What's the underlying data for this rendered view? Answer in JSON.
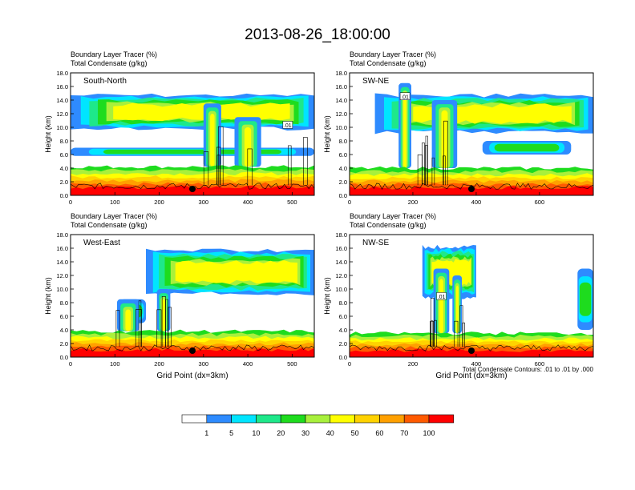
{
  "figure": {
    "title": "2013-08-26_18:00:00",
    "footnote": "Total Condensate Contours: .01 to .01 by .000"
  },
  "colorbar": {
    "colors": [
      "#ffffff",
      "#2e8bff",
      "#00e5ff",
      "#1ee88a",
      "#1edc1e",
      "#a8f03c",
      "#ffff00",
      "#ffd200",
      "#ffa000",
      "#ff5a00",
      "#ff0000"
    ],
    "labels": [
      "1",
      "5",
      "10",
      "20",
      "30",
      "40",
      "50",
      "60",
      "70",
      "100"
    ]
  },
  "chart_data": [
    {
      "type": "heatmap",
      "panel": "South-North",
      "var_label_1": "Boundary Layer Tracer   (%)",
      "var_label_2": "Total Condensate   (g/kg)",
      "xlabel": "",
      "ylabel": "Height (km)",
      "xlim": [
        0,
        550
      ],
      "ylim": [
        0,
        18
      ],
      "xticks": [
        "0",
        "100",
        "200",
        "300",
        "400",
        "500"
      ],
      "xtick_values": [
        0,
        100,
        200,
        300,
        400,
        500
      ],
      "yticks": [
        "0.0",
        "2.0",
        "4.0",
        "6.0",
        "8.0",
        "10.0",
        "12.0",
        "14.0",
        "16.0",
        "18.0"
      ],
      "marker_x": 275,
      "contour_label": ".01",
      "contour_label_x": 490,
      "contour_label_y": 10.3,
      "pbl_top": 4.2,
      "cloud": {
        "x0": 0,
        "x1": 550,
        "bottom": 9.5,
        "top": 15.0,
        "core": 12.0
      },
      "layer": {
        "x0": 0,
        "x1": 550,
        "bottom": 5.8,
        "top": 7.0
      },
      "plumes": [
        {
          "x": 320,
          "w": 40,
          "top": 13.5
        },
        {
          "x": 400,
          "w": 60,
          "top": 11.5
        }
      ],
      "contour_region": [
        300,
        550
      ]
    },
    {
      "type": "heatmap",
      "panel": "SW-NE",
      "var_label_1": "Boundary Layer Tracer   (%)",
      "var_label_2": "Total Condensate   (g/kg)",
      "xlabel": "",
      "ylabel": "Height (km)",
      "xlim": [
        0,
        770
      ],
      "ylim": [
        0,
        18
      ],
      "xticks": [
        "0",
        "200",
        "400",
        "600"
      ],
      "xtick_values": [
        0,
        200,
        400,
        600
      ],
      "yticks": [
        "0.0",
        "2.0",
        "4.0",
        "6.0",
        "8.0",
        "10.0",
        "12.0",
        "14.0",
        "16.0",
        "18.0"
      ],
      "marker_x": 385,
      "contour_label": ".01",
      "contour_label_x": 175,
      "contour_label_y": 14.5,
      "pbl_top": 4.0,
      "cloud": {
        "x0": 80,
        "x1": 770,
        "bottom": 9.0,
        "top": 15.0,
        "core": 12.5
      },
      "layer": {
        "x0": 420,
        "x1": 700,
        "bottom": 6.0,
        "top": 8.0
      },
      "plumes": [
        {
          "x": 175,
          "w": 40,
          "top": 16.5
        },
        {
          "x": 300,
          "w": 80,
          "top": 14.0
        }
      ],
      "contour_region": [
        150,
        330
      ]
    },
    {
      "type": "heatmap",
      "panel": "West-East",
      "var_label_1": "Boundary Layer Tracer   (%)",
      "var_label_2": "Total Condensate   (g/kg)",
      "xlabel": "Grid Point (dx=3km)",
      "ylabel": "Height (km)",
      "xlim": [
        0,
        550
      ],
      "ylim": [
        0,
        18
      ],
      "xticks": [
        "0",
        "100",
        "200",
        "300",
        "400",
        "500"
      ],
      "xtick_values": [
        0,
        100,
        200,
        300,
        400,
        500
      ],
      "yticks": [
        "0.0",
        "2.0",
        "4.0",
        "6.0",
        "8.0",
        "10.0",
        "12.0",
        "14.0",
        "16.0",
        "18.0"
      ],
      "marker_x": 275,
      "contour_label": "",
      "contour_label_x": 0,
      "contour_label_y": 0,
      "pbl_top": 3.8,
      "cloud": {
        "x0": 170,
        "x1": 550,
        "bottom": 9.0,
        "top": 16.0,
        "core": 12.0
      },
      "layer": {
        "x0": 110,
        "x1": 170,
        "bottom": 5.0,
        "top": 8.5
      },
      "plumes": [
        {
          "x": 130,
          "w": 50,
          "top": 8.5
        },
        {
          "x": 210,
          "w": 30,
          "top": 10.0
        }
      ],
      "contour_region": [
        80,
        250
      ]
    },
    {
      "type": "heatmap",
      "panel": "NW-SE",
      "var_label_1": "Boundary Layer Tracer   (%)",
      "var_label_2": "Total Condensate   (g/kg)",
      "xlabel": "Grid Point (dx=3km)",
      "ylabel": "Height (km)",
      "xlim": [
        0,
        770
      ],
      "ylim": [
        0,
        18
      ],
      "xticks": [
        "0",
        "200",
        "400",
        "600"
      ],
      "xtick_values": [
        0,
        200,
        400,
        600
      ],
      "yticks": [
        "0.0",
        "2.0",
        "4.0",
        "6.0",
        "8.0",
        "10.0",
        "12.0",
        "14.0",
        "16.0",
        "18.0"
      ],
      "marker_x": 385,
      "contour_label": ".01",
      "contour_label_x": 290,
      "contour_label_y": 8.9,
      "pbl_top": 3.5,
      "cloud": {
        "x0": 230,
        "x1": 400,
        "bottom": 8.5,
        "top": 16.5,
        "core": 12.5
      },
      "layer": {
        "x0": 720,
        "x1": 770,
        "bottom": 4.0,
        "top": 13.0
      },
      "plumes": [
        {
          "x": 290,
          "w": 50,
          "top": 13.0
        },
        {
          "x": 340,
          "w": 30,
          "top": 12.0
        }
      ],
      "contour_region": [
        250,
        360
      ]
    }
  ]
}
